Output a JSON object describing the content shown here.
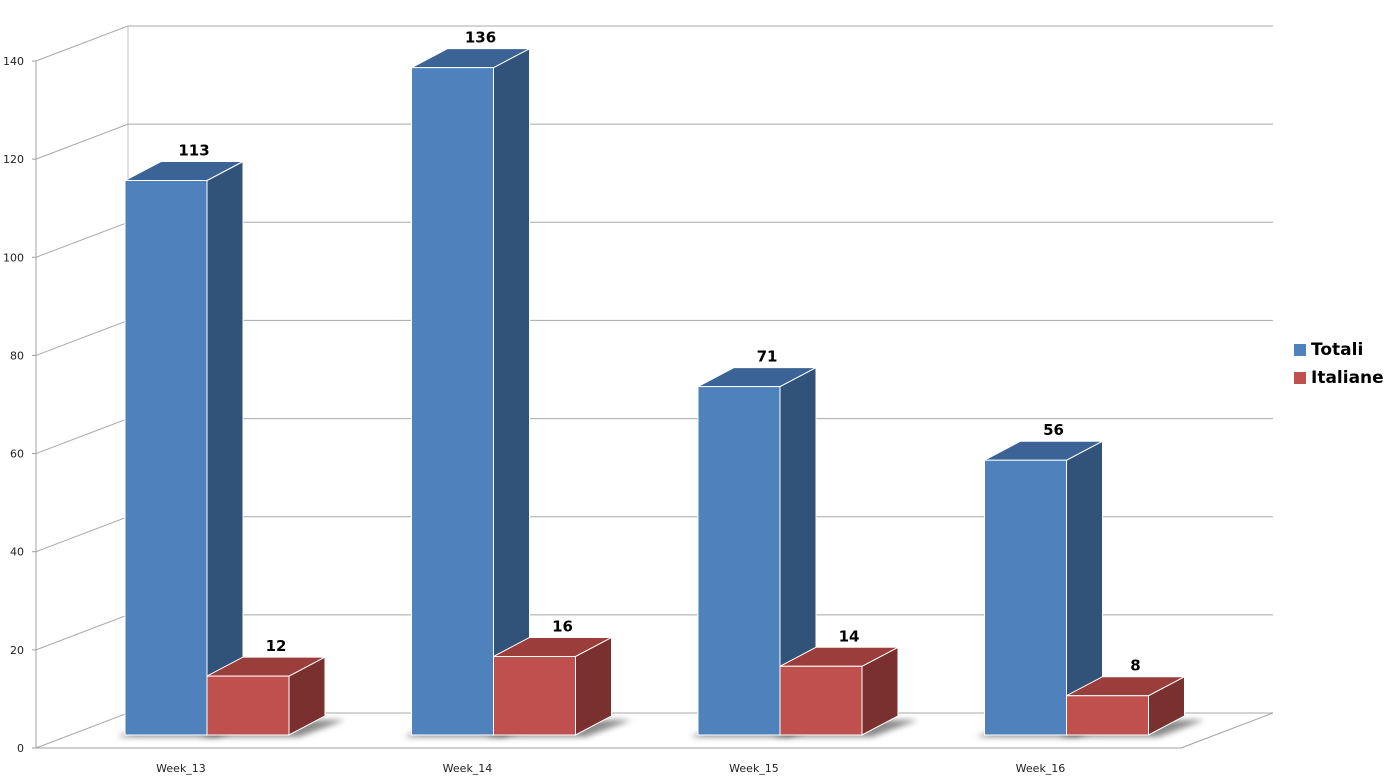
{
  "chart_data": {
    "type": "bar",
    "categories": [
      "Week_13",
      "Week_14",
      "Week_15",
      "Week_16"
    ],
    "series": [
      {
        "name": "Totali",
        "values": [
          113,
          136,
          71,
          56
        ],
        "color": "#4F81BD",
        "side_color": "#325379",
        "top_color": "#3B6396"
      },
      {
        "name": "Italiane",
        "values": [
          12,
          16,
          14,
          8
        ],
        "color": "#C0504D",
        "side_color": "#7A302E",
        "top_color": "#9A3D3B"
      }
    ],
    "yticks": [
      "0",
      "20",
      "40",
      "60",
      "80",
      "100",
      "120",
      "140"
    ],
    "ylim": [
      0,
      140
    ],
    "grid": true,
    "legend_position": "right",
    "style": "3d-column"
  },
  "legend": {
    "items": [
      {
        "label": "Totali",
        "color": "#4F81BD"
      },
      {
        "label": "Italiane",
        "color": "#C0504D"
      }
    ]
  }
}
